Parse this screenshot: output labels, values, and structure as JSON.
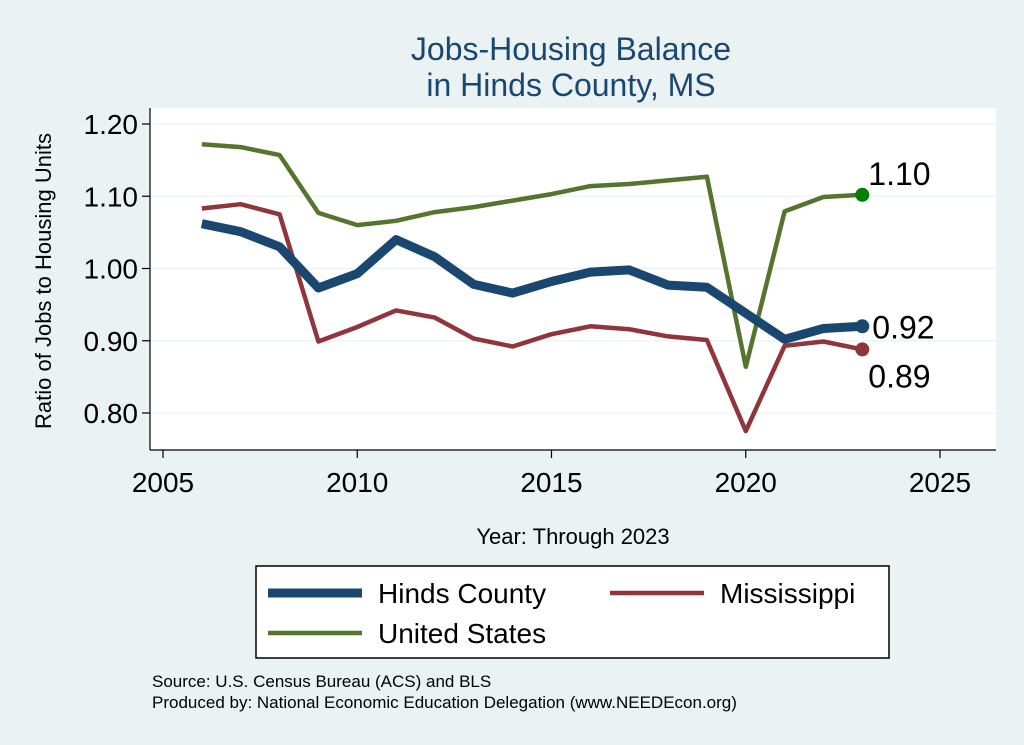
{
  "chart_data": {
    "type": "line",
    "title": [
      "Jobs-Housing Balance",
      "in Hinds County, MS"
    ],
    "xlabel": "Year: Through 2023",
    "ylabel": "Ratio of Jobs to Housing Units",
    "xlim": [
      2005,
      2025
    ],
    "ylim": [
      0.8,
      1.2
    ],
    "x_ticks": [
      2005,
      2010,
      2015,
      2020,
      2025
    ],
    "y_ticks": [
      0.8,
      0.9,
      1.0,
      1.1,
      1.2
    ],
    "y_tick_labels": [
      "0.80",
      "0.90",
      "1.00",
      "1.10",
      "1.20"
    ],
    "grid": true,
    "legend_position": "bottom",
    "x": [
      2006,
      2007,
      2008,
      2009,
      2010,
      2011,
      2012,
      2013,
      2014,
      2015,
      2016,
      2017,
      2018,
      2019,
      2020,
      2021,
      2022,
      2023
    ],
    "series": [
      {
        "name": "Hinds County",
        "color": "#1a476f",
        "values": [
          1.062,
          1.051,
          1.03,
          0.973,
          0.993,
          1.04,
          1.016,
          0.978,
          0.966,
          0.982,
          0.995,
          0.998,
          0.977,
          0.974,
          0.938,
          0.902,
          0.917,
          0.92
        ],
        "end_label": "0.92"
      },
      {
        "name": "Mississippi",
        "color": "#90353b",
        "values": [
          1.083,
          1.089,
          1.075,
          0.899,
          0.919,
          0.942,
          0.932,
          0.903,
          0.892,
          0.909,
          0.92,
          0.916,
          0.906,
          0.901,
          0.775,
          0.893,
          0.899,
          0.888
        ],
        "end_label": "0.89"
      },
      {
        "name": "United States",
        "color": "#55752f",
        "values": [
          1.172,
          1.168,
          1.157,
          1.077,
          1.06,
          1.066,
          1.078,
          1.085,
          1.094,
          1.103,
          1.114,
          1.117,
          1.122,
          1.127,
          0.864,
          1.079,
          1.099,
          1.102
        ],
        "end_label": "1.10",
        "end_marker_color": "#008000"
      }
    ],
    "notes": [
      "Source: U.S. Census Bureau (ACS) and BLS",
      "Produced by: National Economic Education Delegation (www.NEEDEcon.org)"
    ]
  }
}
